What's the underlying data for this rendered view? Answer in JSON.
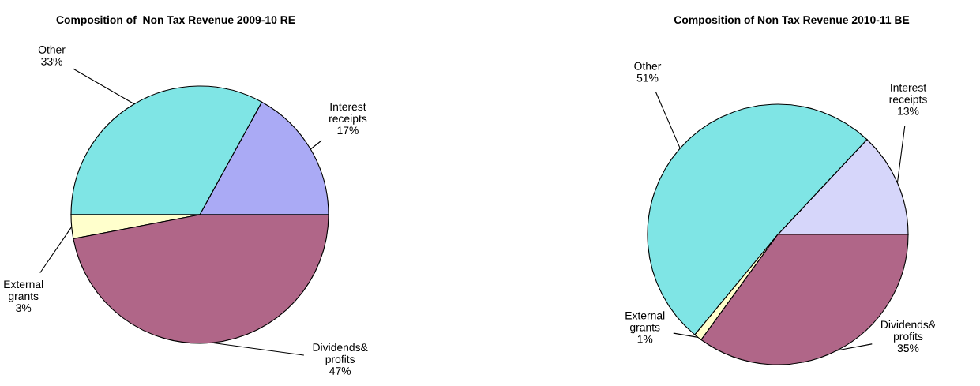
{
  "chart_data": [
    {
      "type": "pie",
      "title": "Composition of  Non Tax Revenue 2009-10 RE",
      "categories": [
        "Interest receipts",
        "Other",
        "External grants",
        "Dividends& profits"
      ],
      "values": [
        17,
        33,
        3,
        47
      ],
      "value_labels": [
        "17%",
        "33%",
        "3%",
        "47%"
      ],
      "colors": [
        "#aaaaf5",
        "#7fe5e5",
        "#ffffcc",
        "#b06688"
      ]
    },
    {
      "type": "pie",
      "title": "Composition of Non Tax Revenue 2010-11 BE",
      "categories": [
        "Interest receipts",
        "Other",
        "External grants",
        "Dividends& profits"
      ],
      "values": [
        13,
        51,
        1,
        35
      ],
      "value_labels": [
        "13%",
        "51%",
        "1%",
        "35%"
      ],
      "colors": [
        "#d6d6fa",
        "#7fe5e5",
        "#ffffcc",
        "#b06688"
      ]
    }
  ]
}
